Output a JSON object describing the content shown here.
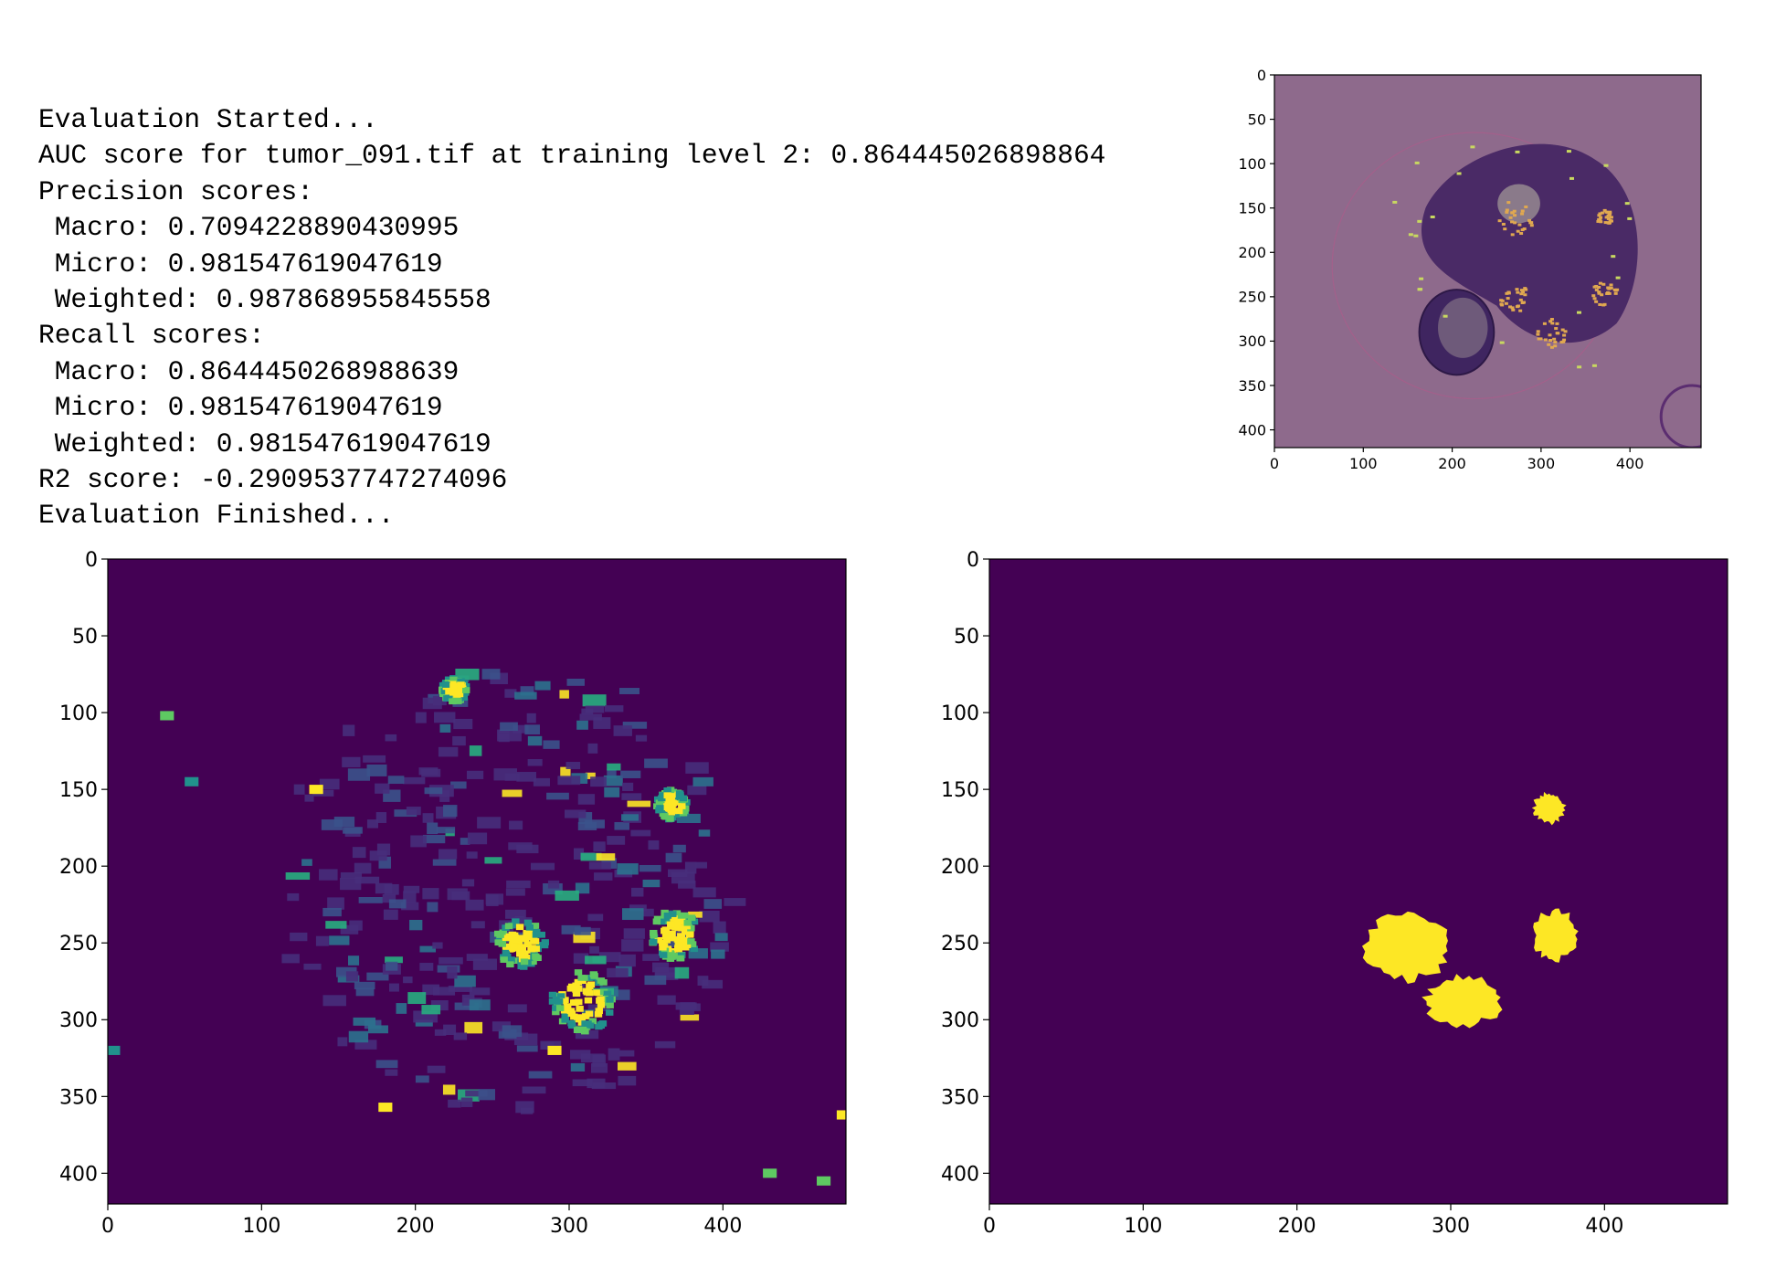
{
  "output_log": [
    "Evaluation Started...",
    "AUC score for tumor_091.tif at training level 2: 0.864445026898864",
    "Precision scores:",
    " Macro: 0.7094228890430995",
    " Micro: 0.981547619047619",
    " Weighted: 0.987868955845558",
    "Recall scores:",
    " Macro: 0.8644450268988639",
    " Micro: 0.981547619047619",
    " Weighted: 0.981547619047619",
    "R2 score: -0.2909537747274096",
    "Evaluation Finished..."
  ],
  "colors": {
    "viridis_dark": "#440154",
    "viridis_teal": "#21918c",
    "viridis_green": "#5ec962",
    "viridis_yellow": "#fde725",
    "overlay_bg": "#8e6a8c",
    "tissue": "#4a2a66"
  },
  "chart_data": [
    {
      "type": "heatmap",
      "description_role": "overlay",
      "x_ticks": [
        "0",
        "100",
        "200",
        "300",
        "400"
      ],
      "y_ticks": [
        "0",
        "50",
        "100",
        "150",
        "200",
        "250",
        "300",
        "350",
        "400"
      ],
      "xlim": [
        0,
        480
      ],
      "ylim": [
        420,
        0
      ],
      "tick_values_x": [
        0,
        100,
        200,
        300,
        400
      ],
      "tick_values_y": [
        0,
        50,
        100,
        150,
        200,
        250,
        300,
        350,
        400
      ],
      "blobs": [
        {
          "x": 270,
          "y": 160,
          "r": 22
        },
        {
          "x": 310,
          "y": 290,
          "r": 18
        },
        {
          "x": 370,
          "y": 245,
          "r": 16
        },
        {
          "x": 370,
          "y": 160,
          "r": 10
        },
        {
          "x": 268,
          "y": 250,
          "r": 18
        }
      ]
    },
    {
      "type": "heatmap",
      "description_role": "prediction",
      "x_ticks": [
        "0",
        "100",
        "200",
        "300",
        "400"
      ],
      "y_ticks": [
        "0",
        "50",
        "100",
        "150",
        "200",
        "250",
        "300",
        "350",
        "400"
      ],
      "xlim": [
        0,
        480
      ],
      "ylim": [
        420,
        0
      ],
      "tick_values_x": [
        0,
        100,
        200,
        300,
        400
      ],
      "tick_values_y": [
        0,
        50,
        100,
        150,
        200,
        250,
        300,
        350,
        400
      ],
      "hot_regions": [
        {
          "x": 308,
          "y": 288,
          "r": 20
        },
        {
          "x": 368,
          "y": 245,
          "r": 16
        },
        {
          "x": 268,
          "y": 250,
          "r": 16
        },
        {
          "x": 366,
          "y": 160,
          "r": 10
        },
        {
          "x": 225,
          "y": 85,
          "r": 8
        }
      ]
    },
    {
      "type": "heatmap",
      "description_role": "ground_truth_mask",
      "x_ticks": [
        "0",
        "100",
        "200",
        "300",
        "400"
      ],
      "y_ticks": [
        "0",
        "50",
        "100",
        "150",
        "200",
        "250",
        "300",
        "350",
        "400"
      ],
      "xlim": [
        0,
        480
      ],
      "ylim": [
        420,
        0
      ],
      "tick_values_x": [
        0,
        100,
        200,
        300,
        400
      ],
      "tick_values_y": [
        0,
        50,
        100,
        150,
        200,
        250,
        300,
        350,
        400
      ],
      "mask_regions": [
        {
          "x": 272,
          "y": 252,
          "rx": 27,
          "ry": 22
        },
        {
          "x": 308,
          "y": 288,
          "rx": 24,
          "ry": 16
        },
        {
          "x": 368,
          "y": 245,
          "rx": 14,
          "ry": 16
        },
        {
          "x": 364,
          "y": 162,
          "rx": 10,
          "ry": 10
        }
      ]
    }
  ]
}
